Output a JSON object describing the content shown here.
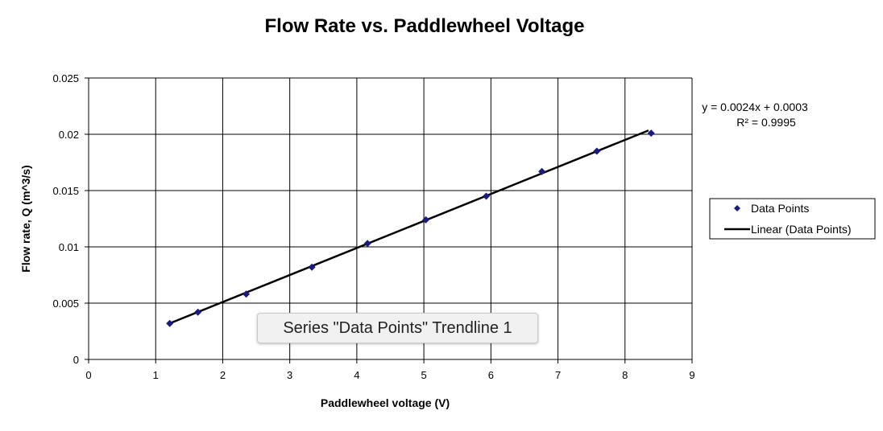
{
  "chart_data": {
    "type": "scatter",
    "title": "Flow Rate vs. Paddlewheel Voltage",
    "xlabel": "Paddlewheel voltage (V)",
    "ylabel": "Flow rate, Q (m^3/s)",
    "xlim": [
      0,
      9
    ],
    "ylim": [
      0,
      0.025
    ],
    "x_ticks": [
      "0",
      "1",
      "2",
      "3",
      "4",
      "5",
      "6",
      "7",
      "8",
      "9"
    ],
    "y_ticks": [
      "0",
      "0.005",
      "0.01",
      "0.015",
      "0.02",
      "0.025"
    ],
    "grid": true,
    "legend_position": "right",
    "series": [
      {
        "name": "Data Points",
        "marker": "diamond",
        "color": "#1a1a80",
        "x": [
          1.21,
          1.63,
          2.35,
          3.33,
          4.16,
          5.03,
          5.93,
          6.76,
          7.58,
          8.39
        ],
        "y": [
          0.0032,
          0.0042,
          0.0058,
          0.0082,
          0.0103,
          0.0124,
          0.0145,
          0.0167,
          0.0185,
          0.0201
        ]
      }
    ],
    "trendline": {
      "name": "Linear (Data Points)",
      "type": "linear",
      "slope": 0.0024,
      "intercept": 0.0003,
      "x_range": [
        1.21,
        8.35
      ],
      "color": "#000000",
      "equation_label": "y = 0.0024x + 0.0003",
      "r2_label": "R² = 0.9995"
    },
    "legend": [
      {
        "label": "Data Points",
        "symbol": "diamond"
      },
      {
        "label": "Linear (Data Points)",
        "symbol": "line"
      }
    ]
  },
  "tooltip": {
    "text": "Series \"Data Points\" Trendline 1"
  }
}
